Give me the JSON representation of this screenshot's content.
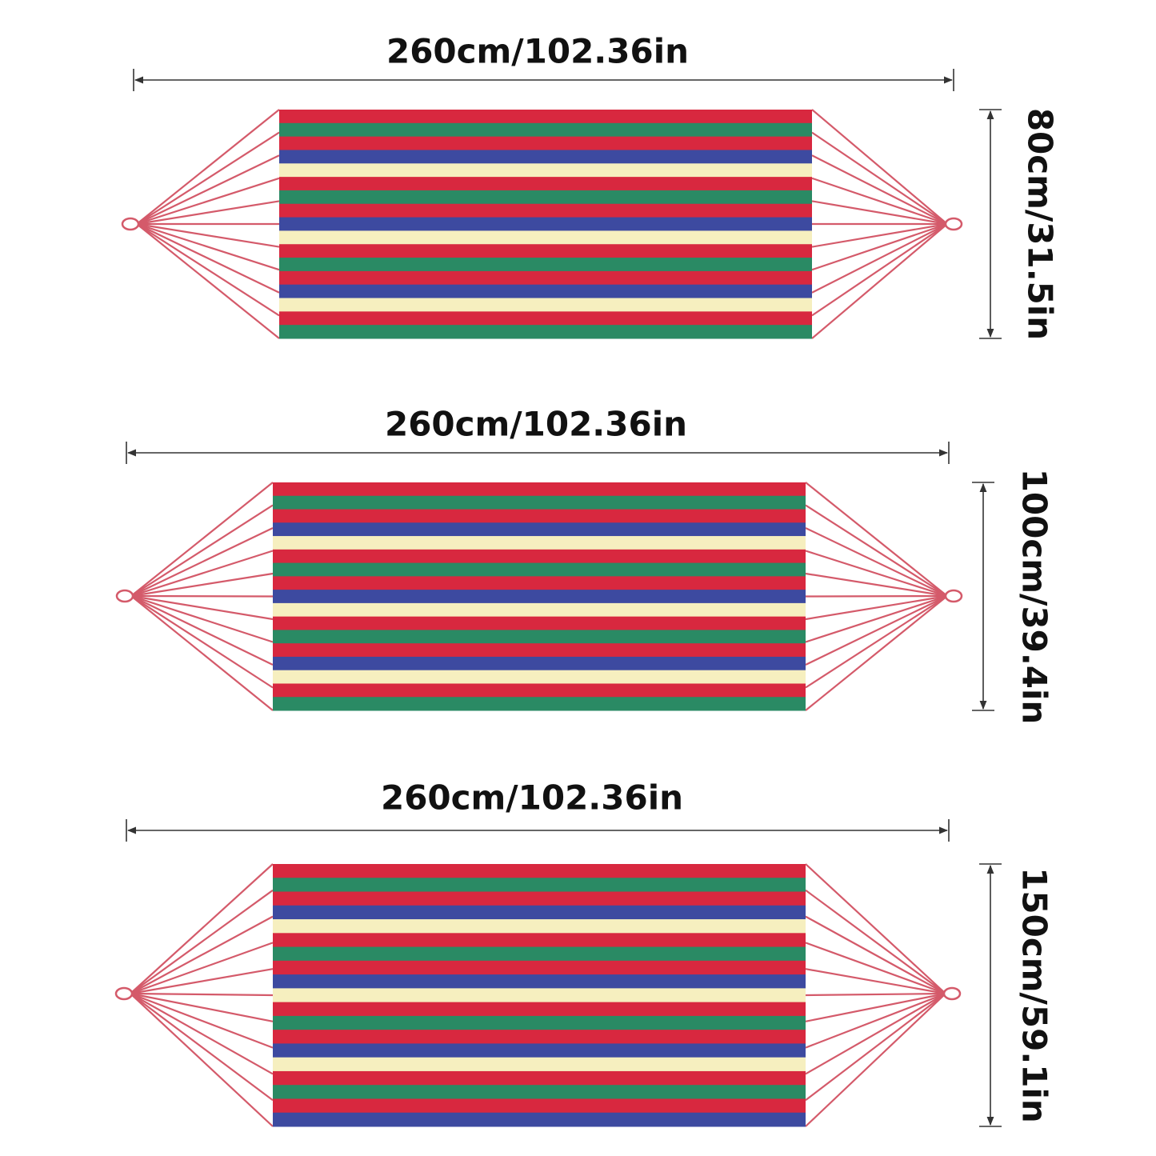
{
  "hammocks": [
    {
      "width_label": "260cm/102.36in",
      "height_label": "80cm/31.5in"
    },
    {
      "width_label": "260cm/102.36in",
      "height_label": "100cm/39.4in"
    },
    {
      "width_label": "260cm/102.36in",
      "height_label": "150cm/59.1in"
    }
  ]
}
